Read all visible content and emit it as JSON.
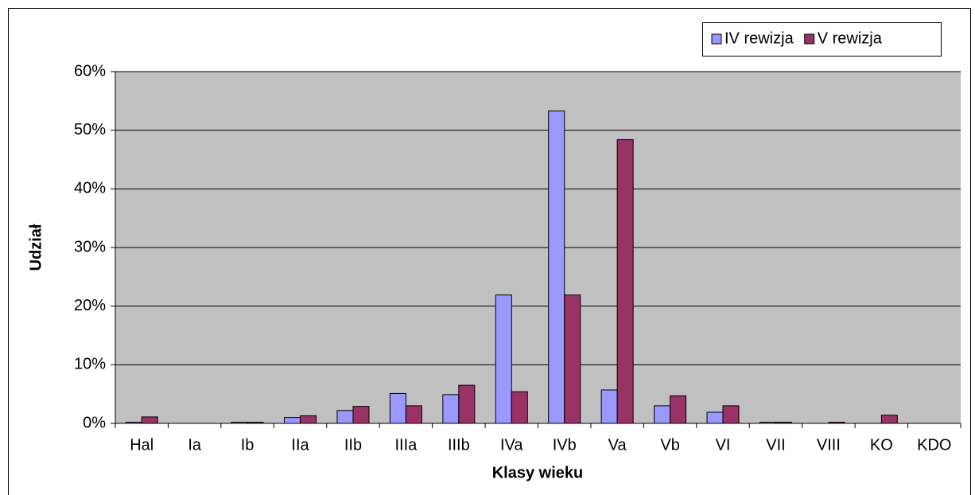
{
  "chart_data": {
    "type": "bar",
    "x_label": "Klasy wieku",
    "y_label": "Udział",
    "categories": [
      "Hal",
      "Ia",
      "Ib",
      "IIa",
      "IIb",
      "IIIa",
      "IIIb",
      "IVa",
      "IVb",
      "Va",
      "Vb",
      "VI",
      "VII",
      "VIII",
      "KO",
      "KDO"
    ],
    "series": [
      {
        "name": "IV rewizja",
        "color": "#9999ff",
        "values": [
          0.2,
          0,
          0.2,
          1.0,
          2.2,
          5.1,
          4.9,
          21.9,
          53.3,
          5.7,
          3.0,
          1.9,
          0.2,
          0,
          0,
          0
        ]
      },
      {
        "name": "V rewizja",
        "color": "#993366",
        "values": [
          1.1,
          0,
          0.2,
          1.3,
          2.9,
          3.0,
          6.5,
          5.4,
          21.9,
          48.4,
          4.7,
          3.0,
          0.2,
          0.2,
          1.4,
          0
        ]
      }
    ],
    "ylim": [
      0,
      60
    ],
    "yticks": [
      {
        "value": 0,
        "label": "0%"
      },
      {
        "value": 10,
        "label": "10%"
      },
      {
        "value": 20,
        "label": "20%"
      },
      {
        "value": 30,
        "label": "30%"
      },
      {
        "value": 40,
        "label": "40%"
      },
      {
        "value": 50,
        "label": "50%"
      },
      {
        "value": 60,
        "label": "60%"
      }
    ],
    "grid": true,
    "legend_position": "top-right"
  }
}
